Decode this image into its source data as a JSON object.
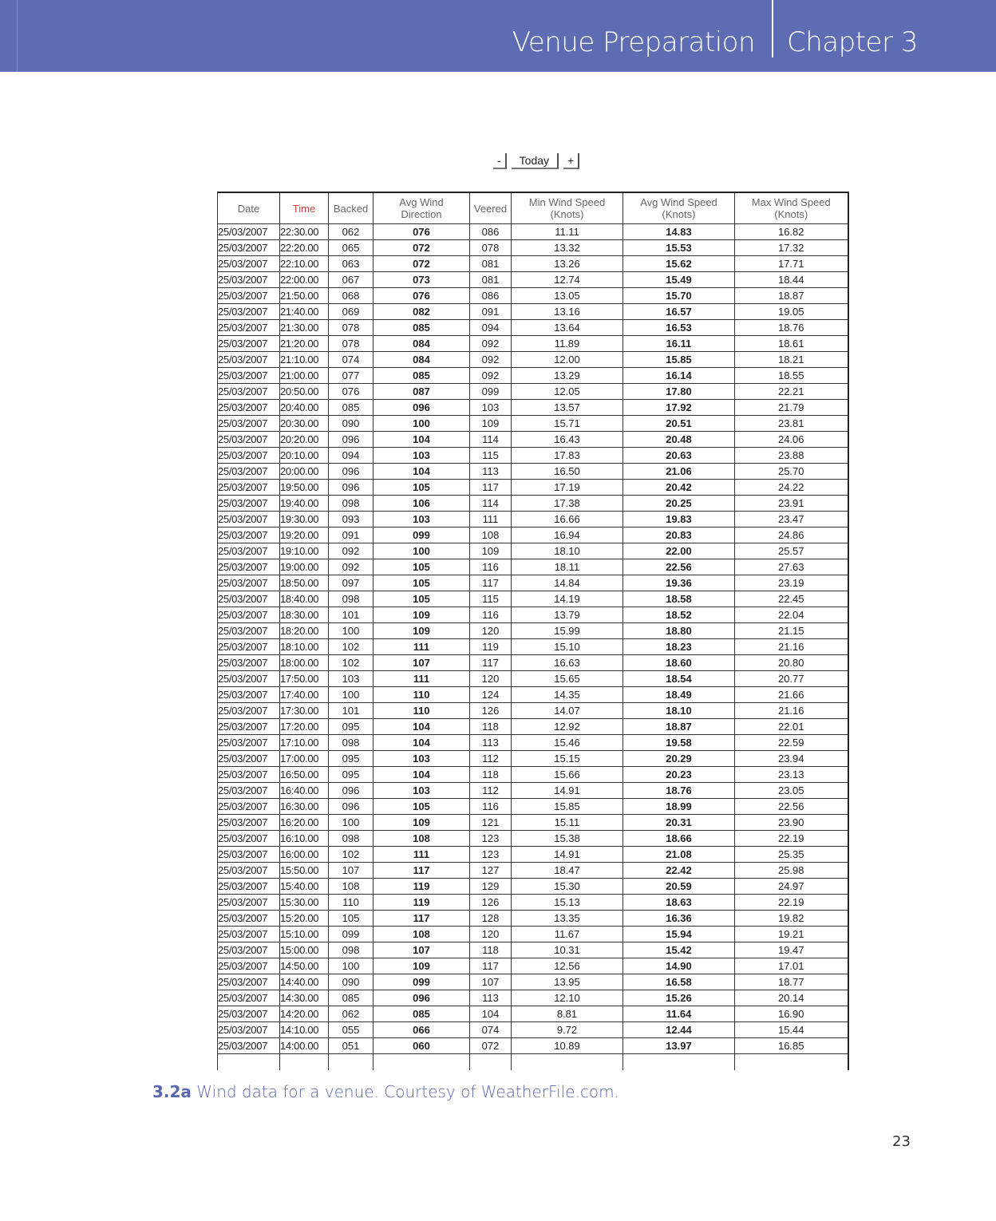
{
  "header": {
    "section": "Venue Preparation",
    "chapter": "Chapter 3",
    "bar_color": "#5e6db3"
  },
  "nav": {
    "prev": "-",
    "today": "Today",
    "next": "+"
  },
  "table": {
    "columns": [
      "Date",
      "Time",
      "Backed",
      "Avg Wind\nDirection",
      "Veered",
      "Min Wind Speed\n(Knots)",
      "Avg Wind Speed\n(Knots)",
      "Max Wind Speed\n(Knots)"
    ],
    "rows": [
      [
        "25/03/2007",
        "22:30.00",
        "062",
        "076",
        "086",
        "11.11",
        "14.83",
        "16.82"
      ],
      [
        "25/03/2007",
        "22:20.00",
        "065",
        "072",
        "078",
        "13.32",
        "15.53",
        "17.32"
      ],
      [
        "25/03/2007",
        "22:10.00",
        "063",
        "072",
        "081",
        "13.26",
        "15.62",
        "17.71"
      ],
      [
        "25/03/2007",
        "22:00.00",
        "067",
        "073",
        "081",
        "12.74",
        "15.49",
        "18.44"
      ],
      [
        "25/03/2007",
        "21:50.00",
        "068",
        "076",
        "086",
        "13.05",
        "15.70",
        "18.87"
      ],
      [
        "25/03/2007",
        "21:40.00",
        "069",
        "082",
        "091",
        "13.16",
        "16.57",
        "19.05"
      ],
      [
        "25/03/2007",
        "21:30.00",
        "078",
        "085",
        "094",
        "13.64",
        "16.53",
        "18.76"
      ],
      [
        "25/03/2007",
        "21:20.00",
        "078",
        "084",
        "092",
        "11.89",
        "16.11",
        "18.61"
      ],
      [
        "25/03/2007",
        "21:10.00",
        "074",
        "084",
        "092",
        "12.00",
        "15.85",
        "18.21"
      ],
      [
        "25/03/2007",
        "21:00.00",
        "077",
        "085",
        "092",
        "13.29",
        "16.14",
        "18.55"
      ],
      [
        "25/03/2007",
        "20:50.00",
        "076",
        "087",
        "099",
        "12.05",
        "17.80",
        "22.21"
      ],
      [
        "25/03/2007",
        "20:40.00",
        "085",
        "096",
        "103",
        "13.57",
        "17.92",
        "21.79"
      ],
      [
        "25/03/2007",
        "20:30.00",
        "090",
        "100",
        "109",
        "15.71",
        "20.51",
        "23.81"
      ],
      [
        "25/03/2007",
        "20:20.00",
        "096",
        "104",
        "114",
        "16.43",
        "20.48",
        "24.06"
      ],
      [
        "25/03/2007",
        "20:10.00",
        "094",
        "103",
        "115",
        "17.83",
        "20.63",
        "23.88"
      ],
      [
        "25/03/2007",
        "20:00.00",
        "096",
        "104",
        "113",
        "16.50",
        "21.06",
        "25.70"
      ],
      [
        "25/03/2007",
        "19:50.00",
        "096",
        "105",
        "117",
        "17.19",
        "20.42",
        "24.22"
      ],
      [
        "25/03/2007",
        "19:40.00",
        "098",
        "106",
        "114",
        "17.38",
        "20.25",
        "23.91"
      ],
      [
        "25/03/2007",
        "19:30.00",
        "093",
        "103",
        "111",
        "16.66",
        "19.83",
        "23.47"
      ],
      [
        "25/03/2007",
        "19:20.00",
        "091",
        "099",
        "108",
        "16.94",
        "20.83",
        "24.86"
      ],
      [
        "25/03/2007",
        "19:10.00",
        "092",
        "100",
        "109",
        "18.10",
        "22.00",
        "25.57"
      ],
      [
        "25/03/2007",
        "19:00.00",
        "092",
        "105",
        "116",
        "18.11",
        "22.56",
        "27.63"
      ],
      [
        "25/03/2007",
        "18:50.00",
        "097",
        "105",
        "117",
        "14.84",
        "19.36",
        "23.19"
      ],
      [
        "25/03/2007",
        "18:40.00",
        "098",
        "105",
        "115",
        "14.19",
        "18.58",
        "22.45"
      ],
      [
        "25/03/2007",
        "18:30.00",
        "101",
        "109",
        "116",
        "13.79",
        "18.52",
        "22.04"
      ],
      [
        "25/03/2007",
        "18:20.00",
        "100",
        "109",
        "120",
        "15.99",
        "18.80",
        "21.15"
      ],
      [
        "25/03/2007",
        "18:10.00",
        "102",
        "111",
        "119",
        "15.10",
        "18.23",
        "21.16"
      ],
      [
        "25/03/2007",
        "18:00.00",
        "102",
        "107",
        "117",
        "16.63",
        "18.60",
        "20.80"
      ],
      [
        "25/03/2007",
        "17:50.00",
        "103",
        "111",
        "120",
        "15.65",
        "18.54",
        "20.77"
      ],
      [
        "25/03/2007",
        "17:40.00",
        "100",
        "110",
        "124",
        "14.35",
        "18.49",
        "21.66"
      ],
      [
        "25/03/2007",
        "17:30.00",
        "101",
        "110",
        "126",
        "14.07",
        "18.10",
        "21.16"
      ],
      [
        "25/03/2007",
        "17:20.00",
        "095",
        "104",
        "118",
        "12.92",
        "18.87",
        "22.01"
      ],
      [
        "25/03/2007",
        "17:10.00",
        "098",
        "104",
        "113",
        "15.46",
        "19.58",
        "22.59"
      ],
      [
        "25/03/2007",
        "17:00.00",
        "095",
        "103",
        "112",
        "15.15",
        "20.29",
        "23.94"
      ],
      [
        "25/03/2007",
        "16:50.00",
        "095",
        "104",
        "118",
        "15.66",
        "20.23",
        "23.13"
      ],
      [
        "25/03/2007",
        "16:40.00",
        "096",
        "103",
        "112",
        "14.91",
        "18.76",
        "23.05"
      ],
      [
        "25/03/2007",
        "16:30.00",
        "096",
        "105",
        "116",
        "15.85",
        "18.99",
        "22.56"
      ],
      [
        "25/03/2007",
        "16:20.00",
        "100",
        "109",
        "121",
        "15.11",
        "20.31",
        "23.90"
      ],
      [
        "25/03/2007",
        "16:10.00",
        "098",
        "108",
        "123",
        "15.38",
        "18.66",
        "22.19"
      ],
      [
        "25/03/2007",
        "16:00.00",
        "102",
        "111",
        "123",
        "14.91",
        "21.08",
        "25.35"
      ],
      [
        "25/03/2007",
        "15:50.00",
        "107",
        "117",
        "127",
        "18.47",
        "22.42",
        "25.98"
      ],
      [
        "25/03/2007",
        "15:40.00",
        "108",
        "119",
        "129",
        "15.30",
        "20.59",
        "24.97"
      ],
      [
        "25/03/2007",
        "15:30.00",
        "110",
        "119",
        "126",
        "15.13",
        "18.63",
        "22.19"
      ],
      [
        "25/03/2007",
        "15:20.00",
        "105",
        "117",
        "128",
        "13.35",
        "16.36",
        "19.82"
      ],
      [
        "25/03/2007",
        "15:10.00",
        "099",
        "108",
        "120",
        "11.67",
        "15.94",
        "19.21"
      ],
      [
        "25/03/2007",
        "15:00.00",
        "098",
        "107",
        "118",
        "10.31",
        "15.42",
        "19.47"
      ],
      [
        "25/03/2007",
        "14:50.00",
        "100",
        "109",
        "117",
        "12.56",
        "14.90",
        "17.01"
      ],
      [
        "25/03/2007",
        "14:40.00",
        "090",
        "099",
        "107",
        "13.95",
        "16.58",
        "18.77"
      ],
      [
        "25/03/2007",
        "14:30.00",
        "085",
        "096",
        "113",
        "12.10",
        "15.26",
        "20.14"
      ],
      [
        "25/03/2007",
        "14:20.00",
        "062",
        "085",
        "104",
        "8.81",
        "11.64",
        "16.90"
      ],
      [
        "25/03/2007",
        "14:10.00",
        "055",
        "066",
        "074",
        "9.72",
        "12.44",
        "15.44"
      ],
      [
        "25/03/2007",
        "14:00.00",
        "051",
        "060",
        "072",
        "10.89",
        "13.97",
        "16.85"
      ]
    ]
  },
  "caption": {
    "number": "3.2a",
    "text": " Wind data for a venue. Courtesy of WeatherFile.com."
  },
  "page_number": "23"
}
